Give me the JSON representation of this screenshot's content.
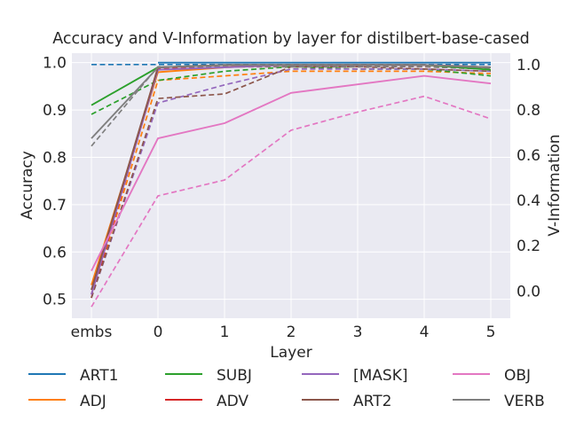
{
  "chart_data": {
    "type": "line",
    "title": "Accuracy and V-Information by layer for distilbert-base-cased",
    "xlabel": "Layer",
    "ylabel": "Accuracy",
    "y2label": "V-Information",
    "categories": [
      "embs",
      "0",
      "1",
      "2",
      "3",
      "4",
      "5"
    ],
    "ylim": [
      0.46,
      1.02
    ],
    "y2lim": [
      -0.12,
      1.05
    ],
    "yticks": [
      "0.5",
      "0.6",
      "0.7",
      "0.8",
      "0.9",
      "1.0"
    ],
    "y2ticks": [
      "0.0",
      "0.2",
      "0.4",
      "0.6",
      "0.8",
      "1.0"
    ],
    "grid": true,
    "legend_position": "bottom",
    "series": [
      {
        "name": "ART1",
        "color": "#1f77b4",
        "accuracy": [
          null,
          1.0,
          1.0,
          1.0,
          1.0,
          1.0,
          1.0
        ],
        "vinfo": [
          1.0,
          1.0,
          1.0,
          1.0,
          1.0,
          1.0,
          1.0
        ]
      },
      {
        "name": "ADJ",
        "color": "#ff7f0e",
        "accuracy": [
          0.53,
          0.98,
          0.99,
          0.995,
          0.995,
          0.995,
          0.99
        ],
        "vinfo": [
          -0.03,
          0.93,
          0.95,
          0.97,
          0.97,
          0.97,
          0.96
        ]
      },
      {
        "name": "SUBJ",
        "color": "#2ca02c",
        "accuracy": [
          0.91,
          0.99,
          0.995,
          0.995,
          0.995,
          0.995,
          0.985
        ],
        "vinfo": [
          0.78,
          0.93,
          0.97,
          0.99,
          0.98,
          0.98,
          0.95
        ]
      },
      {
        "name": "ADV",
        "color": "#d62728",
        "accuracy": [
          0.51,
          0.99,
          0.995,
          0.995,
          0.995,
          0.995,
          0.99
        ],
        "vinfo": [
          -0.03,
          0.98,
          0.99,
          0.99,
          0.99,
          0.99,
          0.98
        ]
      },
      {
        "name": "[MASK]",
        "color": "#9467bd",
        "accuracy": [
          0.51,
          0.985,
          0.99,
          0.995,
          0.995,
          0.995,
          0.99
        ],
        "vinfo": [
          -0.03,
          0.83,
          0.91,
          0.98,
          0.98,
          0.98,
          0.97
        ]
      },
      {
        "name": "ART2",
        "color": "#8c564b",
        "accuracy": [
          0.52,
          0.99,
          0.995,
          0.995,
          0.995,
          0.995,
          0.99
        ],
        "vinfo": [
          -0.03,
          0.85,
          0.87,
          0.99,
          0.99,
          0.98,
          0.97
        ]
      },
      {
        "name": "OBJ",
        "color": "#e377c2",
        "accuracy": [
          0.56,
          0.84,
          0.872,
          0.936,
          0.954,
          0.972,
          0.956
        ],
        "vinfo": [
          -0.07,
          0.42,
          0.49,
          0.71,
          0.79,
          0.86,
          0.76
        ]
      },
      {
        "name": "VERB",
        "color": "#7f7f7f",
        "accuracy": [
          0.84,
          0.99,
          0.995,
          0.995,
          0.995,
          0.995,
          0.99
        ],
        "vinfo": [
          0.64,
          0.99,
          0.99,
          0.99,
          0.99,
          0.99,
          0.98
        ]
      }
    ]
  }
}
